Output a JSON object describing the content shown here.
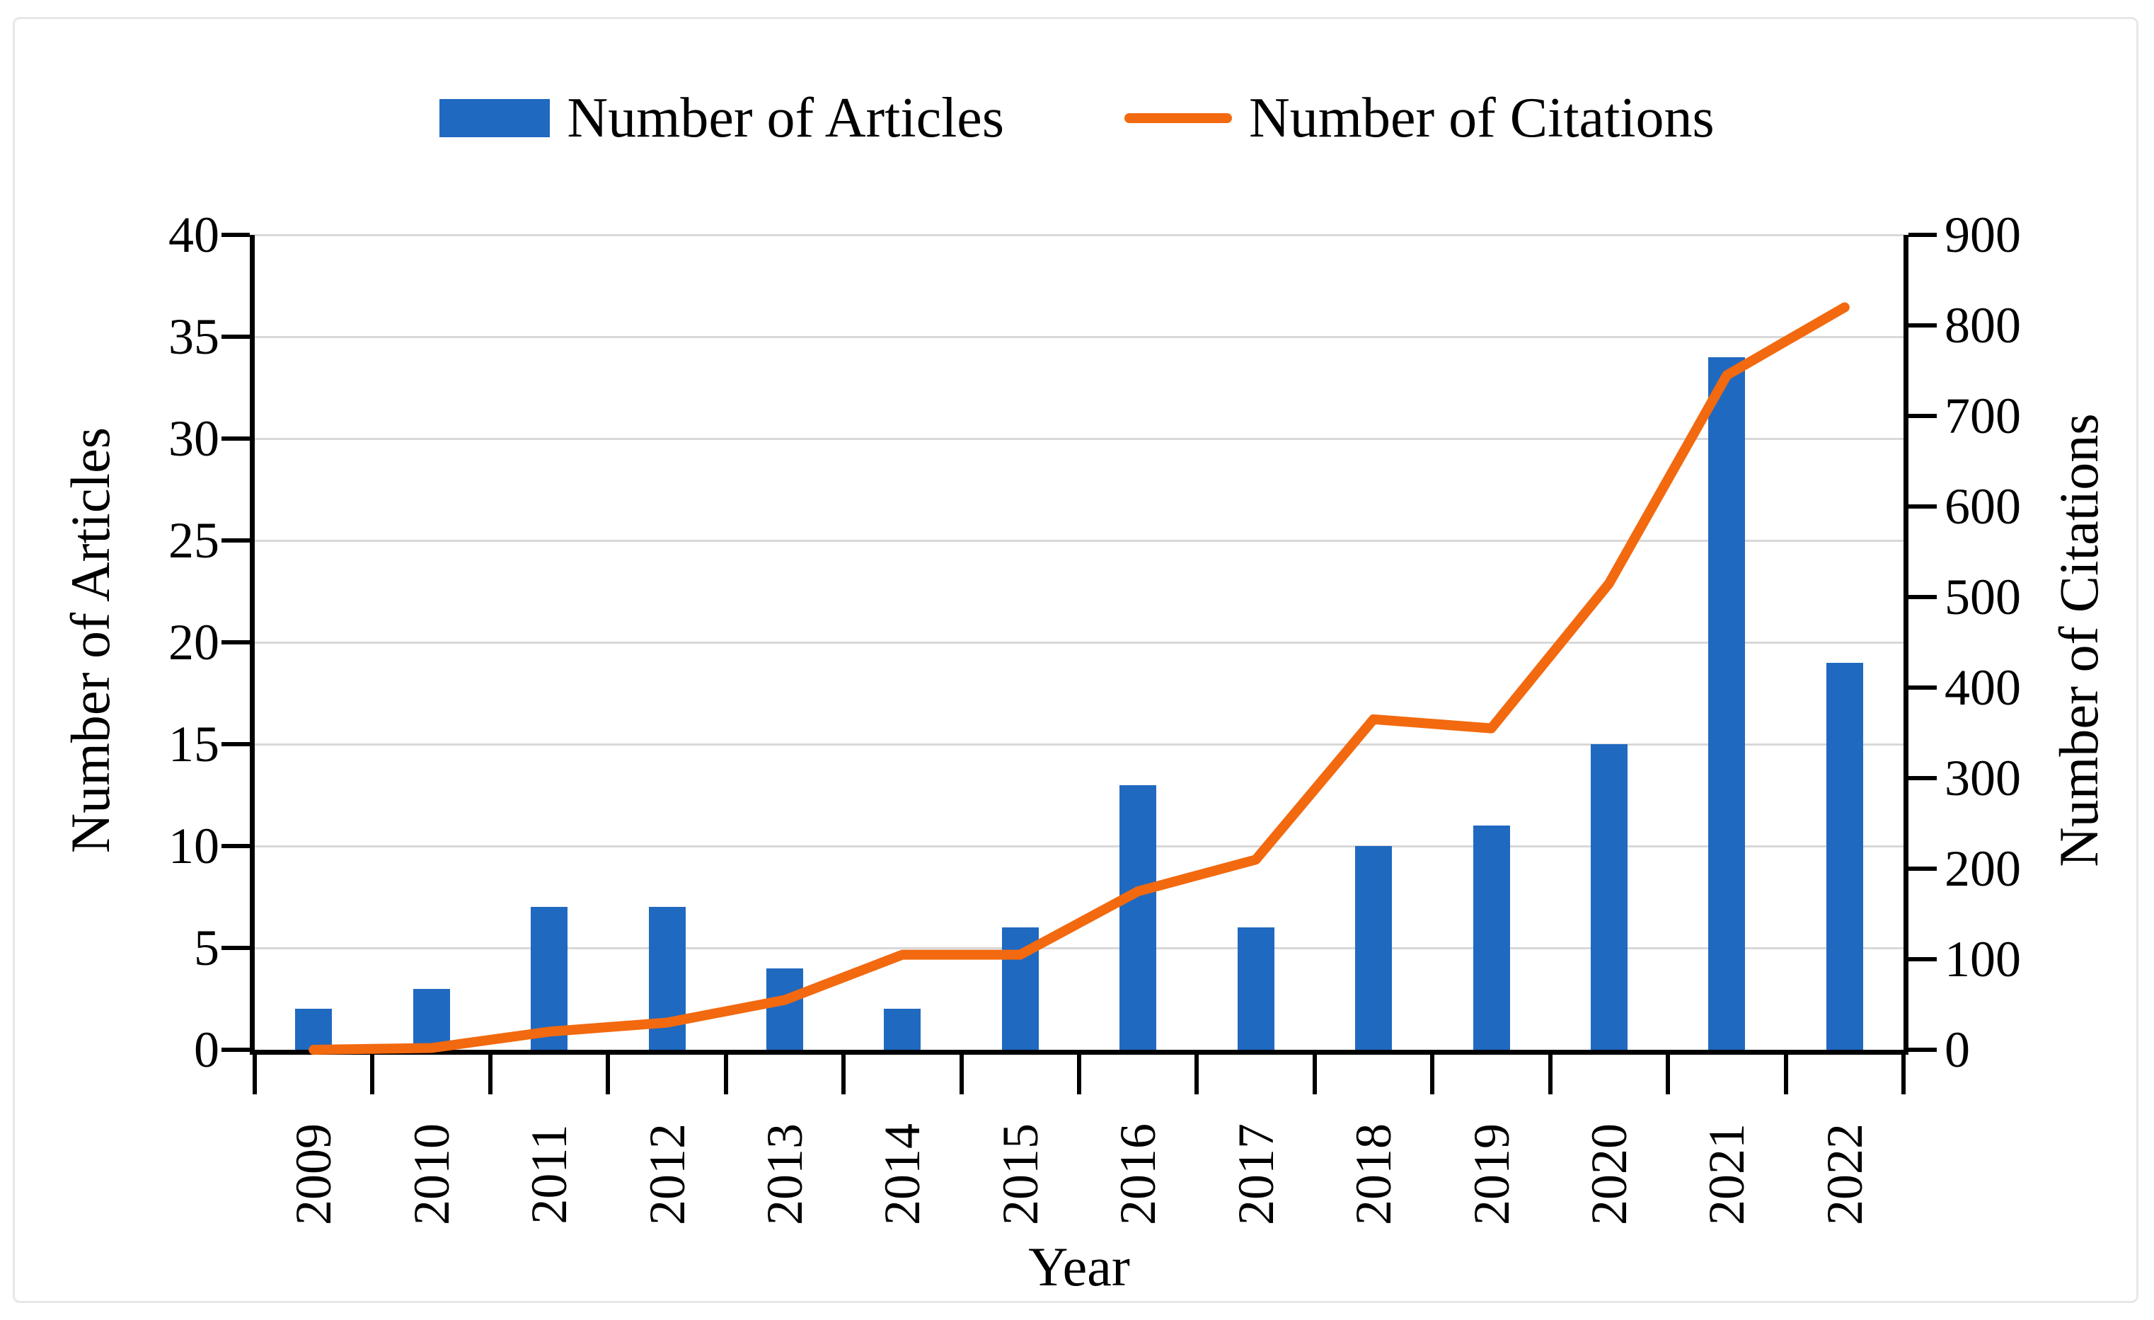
{
  "legend": {
    "articles_label": "Number of Articles",
    "citations_label": "Number of Citations"
  },
  "chart_data": {
    "type": "bar",
    "subtype": "combo-bar-line-dual-axis",
    "categories": [
      "2009",
      "2010",
      "2011",
      "2012",
      "2013",
      "2014",
      "2015",
      "2016",
      "2017",
      "2018",
      "2019",
      "2020",
      "2021",
      "2022"
    ],
    "series": [
      {
        "name": "Number of Articles",
        "type": "bar",
        "axis": "left",
        "color": "#2069c0",
        "values": [
          2,
          3,
          7,
          7,
          4,
          2,
          6,
          13,
          6,
          10,
          11,
          15,
          34,
          19
        ]
      },
      {
        "name": "Number of Citations",
        "type": "line",
        "axis": "right",
        "color": "#f2690f",
        "values": [
          0,
          2,
          20,
          30,
          55,
          105,
          105,
          175,
          210,
          365,
          355,
          515,
          745,
          820
        ]
      }
    ],
    "left_axis": {
      "label": "Number of Articles",
      "min": 0,
      "max": 40,
      "step": 5
    },
    "right_axis": {
      "label": "Number of Citations",
      "min": 0,
      "max": 900,
      "step": 100
    },
    "x_axis": {
      "label": "Year"
    },
    "grid": true,
    "legend_position": "top",
    "colors": {
      "bar": "#2069c0",
      "line": "#f2690f",
      "gridline": "#d8d8d8",
      "axis": "#000000",
      "figure_border": "#e7e7e7"
    }
  }
}
